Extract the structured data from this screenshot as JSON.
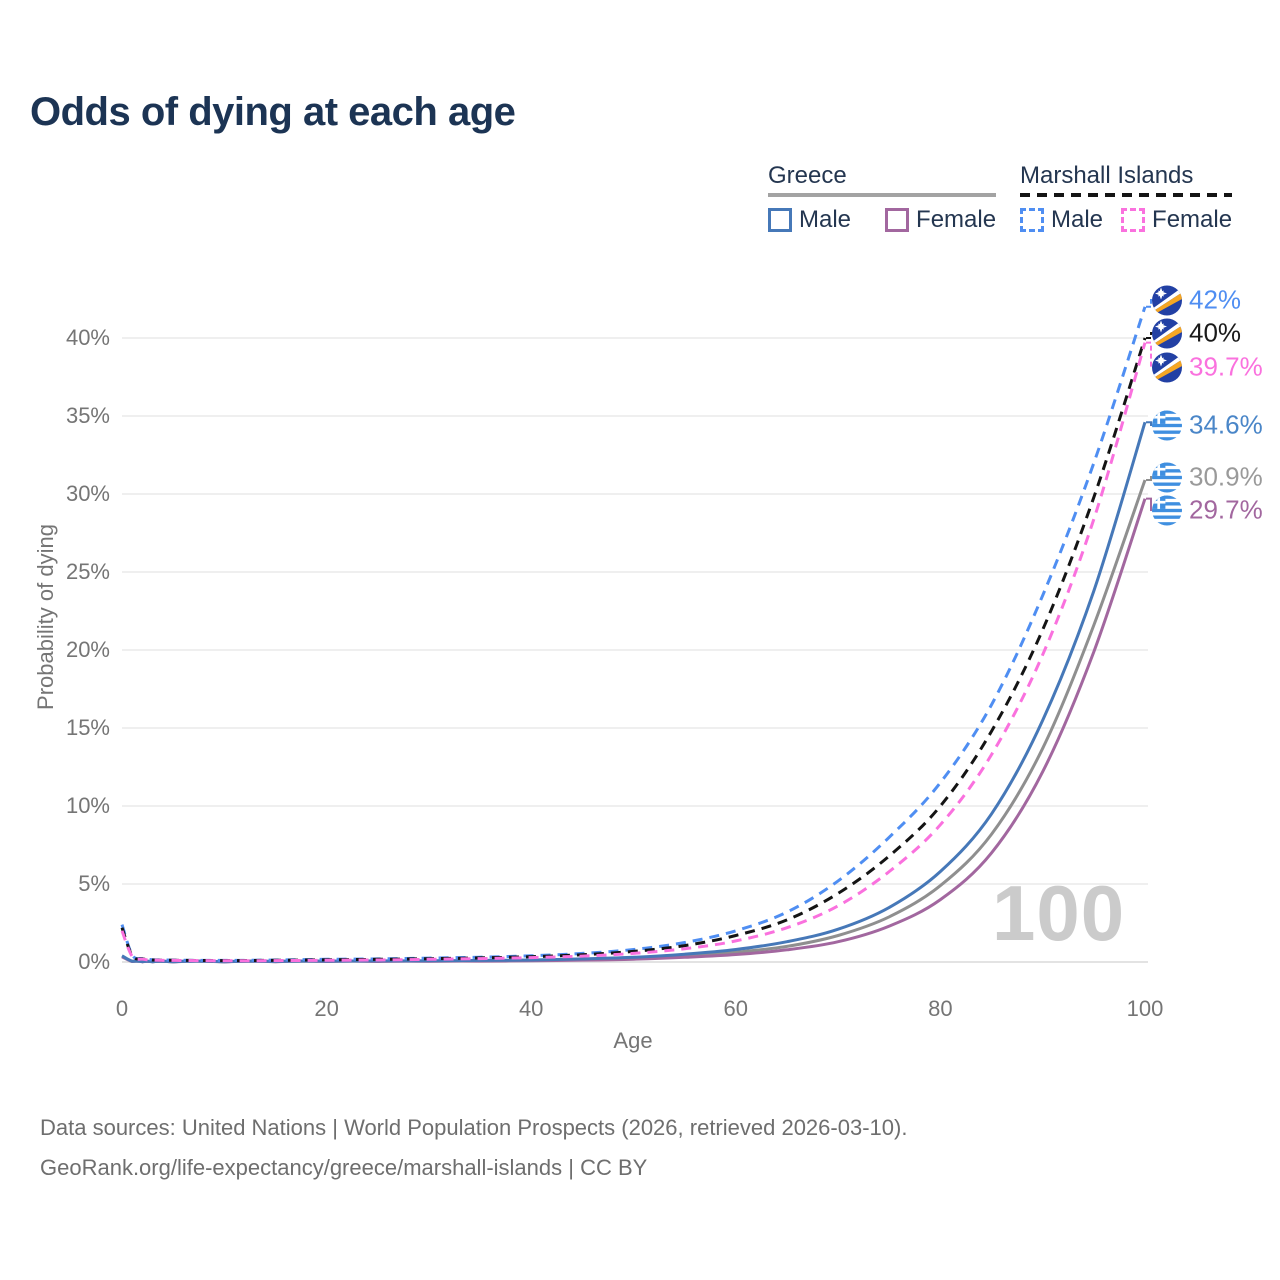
{
  "title": "Odds of dying at each age",
  "legend": {
    "groups": [
      {
        "id": "greece",
        "label": "Greece",
        "line_style": "solid",
        "underline_color": "#a3a3a3",
        "items": [
          {
            "label": "Male",
            "color": "#4678b8"
          },
          {
            "label": "Female",
            "color": "#a2679f"
          }
        ]
      },
      {
        "id": "marshall-islands",
        "label": "Marshall Islands",
        "line_style": "dashed",
        "underline_color": "#141414",
        "items": [
          {
            "label": "Male",
            "color": "#4f8ef2"
          },
          {
            "label": "Female",
            "color": "#fa71de"
          }
        ]
      }
    ]
  },
  "axes": {
    "y": {
      "title": "Probability of dying",
      "ticks": [
        "0%",
        "5%",
        "10%",
        "15%",
        "20%",
        "25%",
        "30%",
        "35%",
        "40%"
      ]
    },
    "x": {
      "title": "Age",
      "ticks": [
        "0",
        "20",
        "40",
        "60",
        "80",
        "100"
      ]
    }
  },
  "watermark": "100",
  "end_labels": [
    {
      "text": "42%",
      "flag": "marshall-islands",
      "color": "#4f8ef2"
    },
    {
      "text": "40%",
      "flag": "marshall-islands",
      "color": "#1a1a1a"
    },
    {
      "text": "39.7%",
      "flag": "marshall-islands",
      "color": "#fa71de"
    },
    {
      "text": "34.6%",
      "flag": "greece",
      "color": "#4a86c8"
    },
    {
      "text": "30.9%",
      "flag": "greece",
      "color": "#9a9a9a"
    },
    {
      "text": "29.7%",
      "flag": "greece",
      "color": "#a2679f"
    }
  ],
  "footer": {
    "line1": "Data sources: United Nations | World Population Prospects (2026, retrieved 2026-03-10).",
    "line2": "GeoRank.org/life-expectancy/greece/marshall-islands | CC BY"
  },
  "chart_data": {
    "type": "line",
    "title": "Odds of dying at each age",
    "xlabel": "Age",
    "ylabel": "Probability of dying",
    "unit": "percent",
    "xlim": [
      0,
      100
    ],
    "ylim": [
      0,
      43.5
    ],
    "grid": "horizontal",
    "legend_position": "top-right",
    "x": [
      0,
      1,
      2,
      3,
      5,
      10,
      15,
      20,
      25,
      30,
      35,
      40,
      45,
      50,
      55,
      60,
      65,
      70,
      75,
      80,
      85,
      90,
      95,
      100
    ],
    "series": [
      {
        "name": "Marshall Islands — Male",
        "color": "#4f8ef2",
        "dashed": true,
        "end_label": "42%",
        "values": [
          2.4,
          0.45,
          0.22,
          0.15,
          0.12,
          0.1,
          0.13,
          0.17,
          0.2,
          0.25,
          0.31,
          0.4,
          0.55,
          0.8,
          1.25,
          2.0,
          3.2,
          5.2,
          8.0,
          11.5,
          16.5,
          23.5,
          32.0,
          42.0
        ]
      },
      {
        "name": "Marshall Islands — Both sexes",
        "color": "#141414",
        "dashed": true,
        "end_label": "40%",
        "values": [
          2.2,
          0.4,
          0.2,
          0.13,
          0.11,
          0.09,
          0.11,
          0.14,
          0.17,
          0.21,
          0.26,
          0.34,
          0.47,
          0.68,
          1.05,
          1.7,
          2.7,
          4.4,
          6.8,
          10.0,
          14.8,
          21.3,
          29.8,
          40.0
        ]
      },
      {
        "name": "Marshall Islands — Female",
        "color": "#fa71de",
        "dashed": true,
        "end_label": "39.7%",
        "values": [
          2.0,
          0.36,
          0.18,
          0.12,
          0.1,
          0.08,
          0.09,
          0.11,
          0.13,
          0.17,
          0.22,
          0.28,
          0.38,
          0.55,
          0.85,
          1.35,
          2.2,
          3.6,
          5.8,
          8.8,
          13.3,
          19.7,
          28.4,
          39.7
        ]
      },
      {
        "name": "Greece — Male",
        "color": "#4678b8",
        "dashed": false,
        "end_label": "34.6%",
        "values": [
          0.4,
          0.05,
          0.02,
          0.02,
          0.01,
          0.01,
          0.03,
          0.06,
          0.07,
          0.08,
          0.1,
          0.13,
          0.2,
          0.3,
          0.5,
          0.8,
          1.3,
          2.1,
          3.5,
          5.8,
          9.5,
          15.5,
          23.8,
          34.6
        ]
      },
      {
        "name": "Greece — Both sexes",
        "color": "#8f8f8f",
        "dashed": false,
        "end_label": "30.9%",
        "values": [
          0.36,
          0.04,
          0.02,
          0.015,
          0.01,
          0.01,
          0.025,
          0.045,
          0.05,
          0.06,
          0.08,
          0.11,
          0.16,
          0.24,
          0.4,
          0.63,
          1.0,
          1.7,
          2.9,
          4.9,
          8.2,
          13.7,
          21.6,
          30.9
        ]
      },
      {
        "name": "Greece — Female",
        "color": "#a2679f",
        "dashed": false,
        "end_label": "29.7%",
        "values": [
          0.33,
          0.035,
          0.015,
          0.01,
          0.008,
          0.008,
          0.02,
          0.03,
          0.035,
          0.045,
          0.06,
          0.08,
          0.12,
          0.18,
          0.3,
          0.48,
          0.78,
          1.3,
          2.3,
          4.0,
          7.0,
          12.2,
          19.9,
          29.7
        ]
      }
    ]
  }
}
